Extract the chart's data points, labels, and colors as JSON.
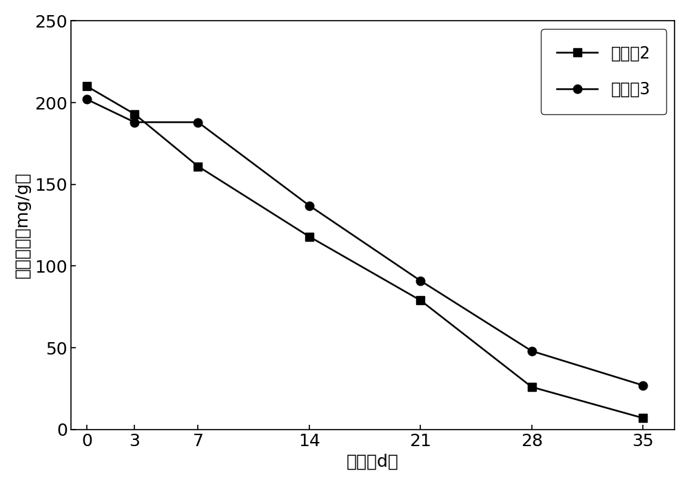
{
  "series": [
    {
      "label": "实施外2",
      "x": [
        0,
        3,
        7,
        14,
        21,
        28,
        35
      ],
      "y": [
        210,
        193,
        161,
        118,
        79,
        26,
        7
      ],
      "marker": "s",
      "color": "#000000",
      "linewidth": 1.8,
      "markersize": 9
    },
    {
      "label": "实施外3",
      "x": [
        0,
        3,
        7,
        14,
        21,
        28,
        35
      ],
      "y": [
        202,
        188,
        188,
        137,
        91,
        48,
        27
      ],
      "marker": "o",
      "color": "#000000",
      "linewidth": 1.8,
      "markersize": 9
    }
  ],
  "xlabel": "时间（d）",
  "ylabel": "油脂浓度（mg/g）",
  "xlim": [
    -1,
    37
  ],
  "ylim": [
    0,
    250
  ],
  "xticks": [
    0,
    3,
    7,
    14,
    21,
    28,
    35
  ],
  "yticks": [
    0,
    50,
    100,
    150,
    200,
    250
  ],
  "xlabel_fontsize": 18,
  "ylabel_fontsize": 18,
  "tick_fontsize": 18,
  "legend_fontsize": 17,
  "background_color": "#ffffff",
  "legend_loc": "upper right"
}
